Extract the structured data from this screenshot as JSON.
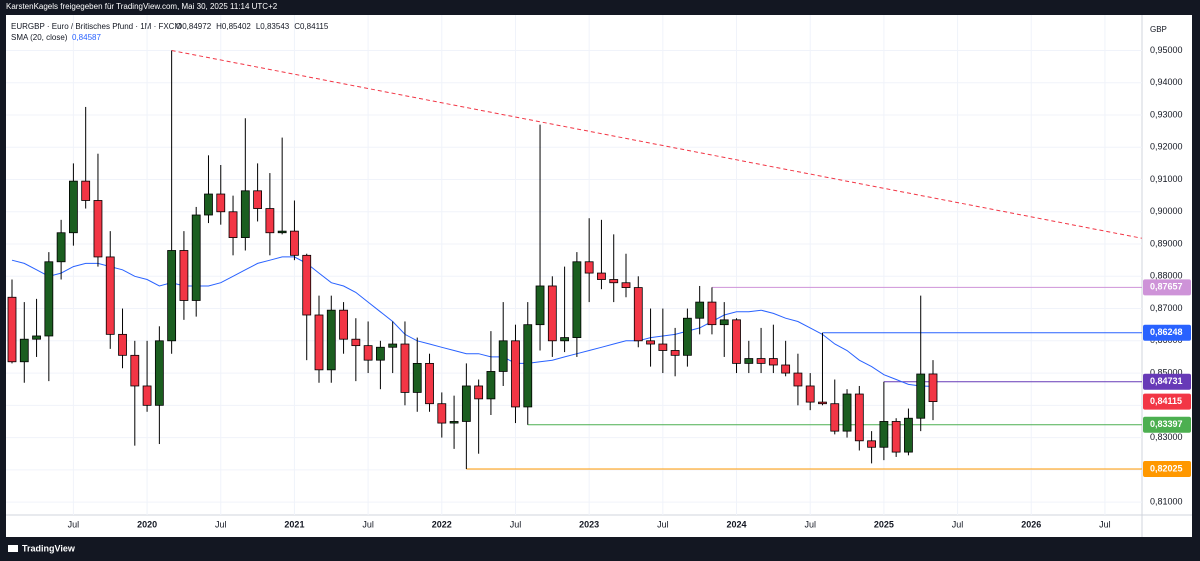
{
  "header": {
    "shared_by": "KarstenKagels freigegeben für TradingView.com, Mai 30, 2025 11:14 UTC+2"
  },
  "footer": {
    "brand": "TradingView"
  },
  "chart_data": {
    "type": "candlestick",
    "symbol": "EURGBP · Euro / Britisches Pfund · 1M · FXCM",
    "ohlc": [
      "O0,84972",
      "H0,85402",
      "L0,83543",
      "C0,84115"
    ],
    "currency": "GBP",
    "up_color": "#1b5e20",
    "down_color": "#f23645",
    "categories": [
      "2019-02",
      "2019-03",
      "2019-04",
      "2019-05",
      "2019-06",
      "2019-07",
      "2019-08",
      "2019-09",
      "2019-10",
      "2019-11",
      "2019-12",
      "2020-01",
      "2020-02",
      "2020-03",
      "2020-04",
      "2020-05",
      "2020-06",
      "2020-07",
      "2020-08",
      "2020-09",
      "2020-10",
      "2020-11",
      "2020-12",
      "2021-01",
      "2021-02",
      "2021-03",
      "2021-04",
      "2021-05",
      "2021-06",
      "2021-07",
      "2021-08",
      "2021-09",
      "2021-10",
      "2021-11",
      "2021-12",
      "2022-01",
      "2022-02",
      "2022-03",
      "2022-04",
      "2022-05",
      "2022-06",
      "2022-07",
      "2022-08",
      "2022-09",
      "2022-10",
      "2022-11",
      "2022-12",
      "2023-01",
      "2023-02",
      "2023-03",
      "2023-04",
      "2023-05",
      "2023-06",
      "2023-07",
      "2023-08",
      "2023-09",
      "2023-10",
      "2023-11",
      "2023-12",
      "2024-01",
      "2024-02",
      "2024-03",
      "2024-04",
      "2024-05",
      "2024-06",
      "2024-07",
      "2024-08",
      "2024-09",
      "2024-10",
      "2024-11",
      "2024-12",
      "2025-01",
      "2025-02",
      "2025-03",
      "2025-04",
      "2025-05"
    ],
    "open": [
      0.8735,
      0.8535,
      0.8605,
      0.8615,
      0.8845,
      0.8935,
      0.9095,
      0.9035,
      0.886,
      0.862,
      0.8555,
      0.846,
      0.84,
      0.86,
      0.888,
      0.8725,
      0.899,
      0.9055,
      0.9,
      0.892,
      0.9065,
      0.901,
      0.8935,
      0.894,
      0.8865,
      0.868,
      0.851,
      0.8695,
      0.8605,
      0.8585,
      0.854,
      0.858,
      0.859,
      0.844,
      0.853,
      0.8405,
      0.8345,
      0.835,
      0.846,
      0.842,
      0.8505,
      0.86,
      0.8395,
      0.865,
      0.877,
      0.86,
      0.861,
      0.8845,
      0.881,
      0.879,
      0.878,
      0.8765,
      0.86,
      0.859,
      0.857,
      0.8555,
      0.867,
      0.872,
      0.865,
      0.8665,
      0.853,
      0.8545,
      0.8545,
      0.8525,
      0.85,
      0.846,
      0.841,
      0.8405,
      0.832,
      0.8435,
      0.829,
      0.827,
      0.835,
      0.8255,
      0.836,
      0.84972
    ],
    "high": [
      0.879,
      0.872,
      0.873,
      0.8875,
      0.8975,
      0.915,
      0.9325,
      0.918,
      0.894,
      0.87,
      0.86,
      0.86,
      0.8645,
      0.95,
      0.894,
      0.9015,
      0.9175,
      0.9145,
      0.905,
      0.929,
      0.915,
      0.912,
      0.923,
      0.9035,
      0.887,
      0.874,
      0.874,
      0.872,
      0.867,
      0.866,
      0.86,
      0.866,
      0.866,
      0.861,
      0.856,
      0.844,
      0.843,
      0.853,
      0.848,
      0.863,
      0.872,
      0.865,
      0.872,
      0.927,
      0.88,
      0.883,
      0.8875,
      0.898,
      0.8975,
      0.893,
      0.887,
      0.88,
      0.87,
      0.87,
      0.864,
      0.87,
      0.877,
      0.87657,
      0.872,
      0.867,
      0.86,
      0.864,
      0.865,
      0.86,
      0.856,
      0.85,
      0.86248,
      0.848,
      0.845,
      0.846,
      0.832,
      0.84731,
      0.836,
      0.839,
      0.874,
      0.85402
    ],
    "low": [
      0.853,
      0.847,
      0.855,
      0.8475,
      0.879,
      0.8895,
      0.901,
      0.883,
      0.8575,
      0.8515,
      0.8275,
      0.838,
      0.828,
      0.856,
      0.8665,
      0.8675,
      0.8965,
      0.896,
      0.8865,
      0.888,
      0.897,
      0.8865,
      0.893,
      0.885,
      0.854,
      0.847,
      0.847,
      0.856,
      0.8475,
      0.85,
      0.845,
      0.85,
      0.84,
      0.838,
      0.838,
      0.83,
      0.8265,
      0.82025,
      0.825,
      0.837,
      0.846,
      0.8345,
      0.83397,
      0.857,
      0.855,
      0.8565,
      0.855,
      0.872,
      0.876,
      0.872,
      0.8735,
      0.858,
      0.852,
      0.85,
      0.849,
      0.852,
      0.862,
      0.862,
      0.855,
      0.85,
      0.85,
      0.85,
      0.85,
      0.849,
      0.84,
      0.8385,
      0.84,
      0.831,
      0.83,
      0.826,
      0.822,
      0.823,
      0.824,
      0.8245,
      0.832,
      0.83543
    ],
    "close": [
      0.8535,
      0.8605,
      0.8615,
      0.8845,
      0.8935,
      0.9095,
      0.9035,
      0.886,
      0.862,
      0.8555,
      0.846,
      0.84,
      0.86,
      0.888,
      0.8725,
      0.899,
      0.9055,
      0.9,
      0.892,
      0.9065,
      0.901,
      0.8935,
      0.894,
      0.8865,
      0.868,
      0.851,
      0.8695,
      0.8605,
      0.8585,
      0.854,
      0.858,
      0.859,
      0.844,
      0.853,
      0.8405,
      0.8345,
      0.835,
      0.846,
      0.842,
      0.8505,
      0.86,
      0.8395,
      0.865,
      0.877,
      0.86,
      0.861,
      0.8845,
      0.881,
      0.879,
      0.878,
      0.8765,
      0.86,
      0.859,
      0.857,
      0.8555,
      0.867,
      0.872,
      0.865,
      0.8665,
      0.853,
      0.8545,
      0.853,
      0.8525,
      0.85,
      0.846,
      0.841,
      0.8405,
      0.832,
      0.8435,
      0.829,
      0.827,
      0.835,
      0.8255,
      0.836,
      0.8497,
      0.84115
    ],
    "sma": {
      "name": "SMA (20, close)",
      "color": "#2962ff",
      "last_value": {
        "value": 0.84587,
        "label": "0,84587"
      },
      "values": [
        0.885,
        0.884,
        0.882,
        0.88,
        0.881,
        0.883,
        0.884,
        0.884,
        0.883,
        0.882,
        0.88,
        0.879,
        0.877,
        0.878,
        0.877,
        0.877,
        0.877,
        0.878,
        0.88,
        0.882,
        0.884,
        0.885,
        0.886,
        0.886,
        0.884,
        0.881,
        0.878,
        0.877,
        0.875,
        0.872,
        0.869,
        0.866,
        0.862,
        0.86,
        0.859,
        0.858,
        0.857,
        0.856,
        0.856,
        0.855,
        0.855,
        0.853,
        0.853,
        0.8535,
        0.854,
        0.855,
        0.856,
        0.857,
        0.858,
        0.859,
        0.86,
        0.86,
        0.861,
        0.8615,
        0.862,
        0.863,
        0.864,
        0.866,
        0.868,
        0.869,
        0.869,
        0.8695,
        0.8685,
        0.867,
        0.866,
        0.864,
        0.862,
        0.859,
        0.857,
        0.854,
        0.852,
        0.8495,
        0.848,
        0.8465,
        0.846,
        0.84587
      ]
    },
    "trendline": {
      "color": "#f23645",
      "points": [
        [
          "2020-03",
          0.95
        ],
        [
          "2026-10",
          0.8918
        ]
      ]
    },
    "levels": [
      {
        "value": 0.87657,
        "label": "0,87657",
        "color": "#ce93d8",
        "from": "2023-11"
      },
      {
        "value": 0.86248,
        "label": "0,86248",
        "color": "#2962ff",
        "from": "2024-08"
      },
      {
        "value": 0.84731,
        "label": "0,84731",
        "color": "#673ab7",
        "from": "2025-01"
      },
      {
        "value": 0.83397,
        "label": "0,83397",
        "color": "#4caf50",
        "from": "2022-08"
      },
      {
        "value": 0.82025,
        "label": "0,82025",
        "color": "#ff9800",
        "from": "2022-03"
      }
    ],
    "last_price": {
      "value": 0.84115,
      "label": "0,84115",
      "color": "#f23645"
    },
    "ylim": [
      0.806,
      0.961
    ],
    "yticks": [
      {
        "value": 0.81,
        "label": "0,81000"
      },
      {
        "value": 0.82,
        "label": "0,82000"
      },
      {
        "value": 0.83,
        "label": "0,83000"
      },
      {
        "value": 0.84,
        "label": "0,84000"
      },
      {
        "value": 0.85,
        "label": "0,85000"
      },
      {
        "value": 0.86,
        "label": "0,86000"
      },
      {
        "value": 0.87,
        "label": "0,87000"
      },
      {
        "value": 0.88,
        "label": "0,88000"
      },
      {
        "value": 0.89,
        "label": "0,89000"
      },
      {
        "value": 0.9,
        "label": "0,90000"
      },
      {
        "value": 0.91,
        "label": "0,91000"
      },
      {
        "value": 0.92,
        "label": "0,92000"
      },
      {
        "value": 0.93,
        "label": "0,93000"
      },
      {
        "value": 0.94,
        "label": "0,94000"
      },
      {
        "value": 0.95,
        "label": "0,95000"
      }
    ],
    "xticks": [
      {
        "value": "2019-07",
        "label": "Jul"
      },
      {
        "value": "2020-01",
        "label": "2020"
      },
      {
        "value": "2020-07",
        "label": "Jul"
      },
      {
        "value": "2021-01",
        "label": "2021"
      },
      {
        "value": "2021-07",
        "label": "Jul"
      },
      {
        "value": "2022-01",
        "label": "2022"
      },
      {
        "value": "2022-07",
        "label": "Jul"
      },
      {
        "value": "2023-01",
        "label": "2023"
      },
      {
        "value": "2023-07",
        "label": "Jul"
      },
      {
        "value": "2024-01",
        "label": "2024"
      },
      {
        "value": "2024-07",
        "label": "Jul"
      },
      {
        "value": "2025-01",
        "label": "2025"
      },
      {
        "value": "2025-07",
        "label": "Jul"
      },
      {
        "value": "2026-01",
        "label": "2026"
      },
      {
        "value": "2026-07",
        "label": "Jul"
      }
    ],
    "grid": true
  }
}
